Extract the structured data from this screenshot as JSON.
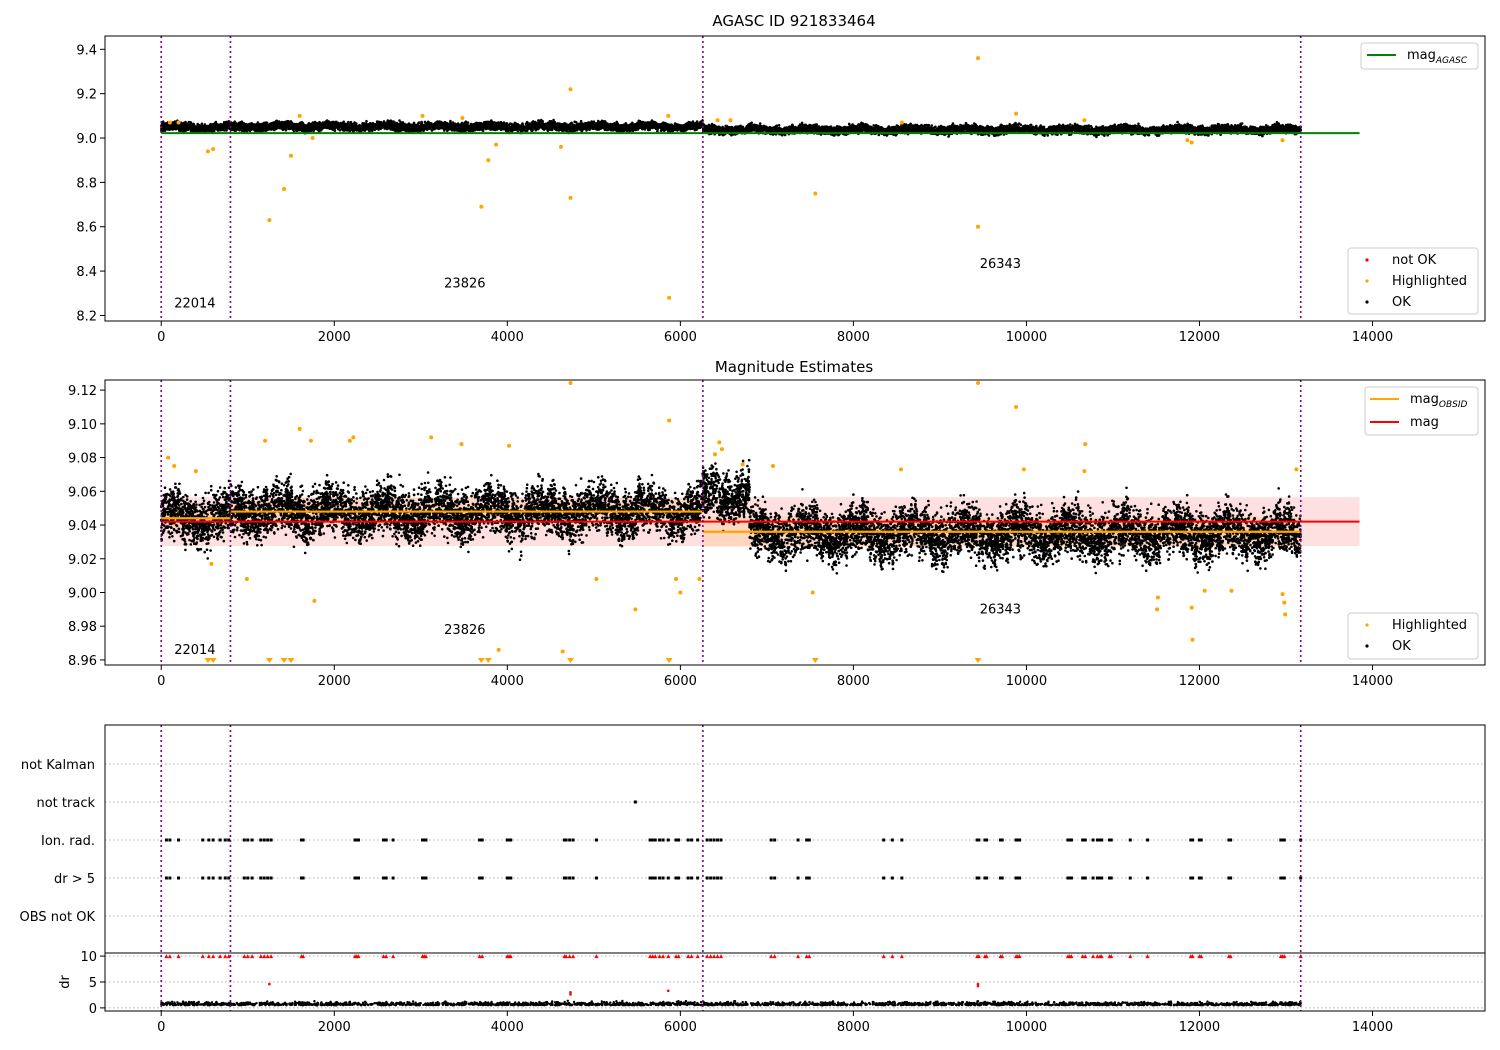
{
  "colors": {
    "ok": "#000000",
    "highlighted": "#ffa500",
    "not_ok": "#ff0000",
    "mag_agasc": "#008000",
    "mag_obsid": "#ffa500",
    "mag": "#ff0000",
    "obsid_boundary": "#800080"
  },
  "chart_data": [
    {
      "type": "scatter",
      "title": "AGASC ID 921833464",
      "xlim": [
        -650,
        15300
      ],
      "ylim": [
        8.175,
        9.46
      ],
      "xticks": [
        0,
        2000,
        4000,
        6000,
        8000,
        10000,
        12000,
        14000
      ],
      "yticks": [
        8.2,
        8.4,
        8.6,
        8.8,
        9.0,
        9.2,
        9.4
      ],
      "x_tick_labels": [
        "0",
        "2000",
        "4000",
        "6000",
        "8000",
        "10000",
        "12000",
        "14000"
      ],
      "y_tick_labels": [
        "8.2",
        "8.4",
        "8.6",
        "8.8",
        "9.0",
        "9.2",
        "9.4"
      ],
      "obsid_boundaries": [
        0,
        800,
        6260,
        13170
      ],
      "obsid_labels": [
        {
          "text": "22014",
          "x": 150,
          "y": 8.235
        },
        {
          "text": "23826",
          "x": 3270,
          "y": 8.325
        },
        {
          "text": "26343",
          "x": 9460,
          "y": 8.415
        }
      ],
      "reference_line": {
        "name": "mag_AGASC",
        "y": 9.022,
        "x_range": [
          0,
          13850
        ]
      },
      "ok_band": {
        "segments": [
          [
            0,
            800,
            9.048
          ],
          [
            800,
            6260,
            9.052
          ],
          [
            6260,
            13170,
            9.038
          ]
        ],
        "spread": 0.016
      },
      "highlighted_points": [
        [
          540,
          8.94
        ],
        [
          600,
          8.95
        ],
        [
          1250,
          8.63
        ],
        [
          1420,
          8.77
        ],
        [
          1500,
          8.92
        ],
        [
          3700,
          8.69
        ],
        [
          3780,
          8.9
        ],
        [
          3870,
          8.97
        ],
        [
          4620,
          8.96
        ],
        [
          4730,
          8.73
        ],
        [
          4730,
          9.22
        ],
        [
          5860,
          9.1
        ],
        [
          5870,
          8.28
        ],
        [
          7560,
          8.75
        ],
        [
          9440,
          9.36
        ],
        [
          9440,
          8.6
        ],
        [
          9880,
          9.11
        ],
        [
          11910,
          8.98
        ],
        [
          11860,
          8.99
        ],
        [
          12960,
          8.99
        ],
        [
          100,
          9.07
        ],
        [
          200,
          9.07
        ],
        [
          1600,
          9.1
        ],
        [
          1750,
          9.0
        ],
        [
          3020,
          9.1
        ],
        [
          3480,
          9.09
        ],
        [
          6430,
          9.08
        ],
        [
          6580,
          9.08
        ],
        [
          8560,
          9.07
        ],
        [
          10670,
          9.08
        ]
      ],
      "legend": [
        "mag_AGASC"
      ],
      "legend2": [
        "not OK",
        "Highlighted",
        "OK"
      ]
    },
    {
      "type": "scatter",
      "title": "Magnitude Estimates",
      "xlim": [
        -650,
        15300
      ],
      "ylim": [
        8.957,
        9.126
      ],
      "xticks": [
        0,
        2000,
        4000,
        6000,
        8000,
        10000,
        12000,
        14000
      ],
      "yticks": [
        8.96,
        8.98,
        9.0,
        9.02,
        9.04,
        9.06,
        9.08,
        9.1,
        9.12
      ],
      "x_tick_labels": [
        "0",
        "2000",
        "4000",
        "6000",
        "8000",
        "10000",
        "12000",
        "14000"
      ],
      "y_tick_labels": [
        "8.96",
        "8.98",
        "9.00",
        "9.02",
        "9.04",
        "9.06",
        "9.08",
        "9.10",
        "9.12"
      ],
      "obsid_boundaries": [
        0,
        800,
        6260,
        13170
      ],
      "obsid_labels": [
        {
          "text": "22014",
          "x": 150,
          "y": 8.9635
        },
        {
          "text": "23826",
          "x": 3270,
          "y": 8.9755
        },
        {
          "text": "26343",
          "x": 9460,
          "y": 8.9875
        }
      ],
      "mag": {
        "y": 9.042,
        "band": [
          9.0275,
          9.0565
        ],
        "x_range": [
          0,
          13850
        ]
      },
      "mag_obsid": [
        {
          "x_range": [
            0,
            800
          ],
          "y": 9.044,
          "band": [
            9.038,
            9.05
          ]
        },
        {
          "x_range": [
            800,
            6260
          ],
          "y": 9.048,
          "band": [
            9.04,
            9.056
          ]
        },
        {
          "x_range": [
            6260,
            13170
          ],
          "y": 9.036,
          "band": [
            9.027,
            9.045
          ]
        }
      ],
      "ok_cloud": {
        "segments": [
          [
            0,
            800,
            9.044
          ],
          [
            800,
            6260,
            9.048
          ],
          [
            6260,
            6800,
            9.058
          ],
          [
            6800,
            13170,
            9.035
          ]
        ],
        "spread": 0.013
      },
      "highlighted_points": [
        [
          80,
          9.08
        ],
        [
          150,
          9.075
        ],
        [
          400,
          9.072
        ],
        [
          580,
          9.017
        ],
        [
          990,
          9.008
        ],
        [
          1200,
          9.09
        ],
        [
          1600,
          9.097
        ],
        [
          1730,
          9.09
        ],
        [
          1770,
          8.995
        ],
        [
          2180,
          9.09
        ],
        [
          2220,
          9.092
        ],
        [
          3120,
          9.092
        ],
        [
          3470,
          9.088
        ],
        [
          3900,
          8.966
        ],
        [
          4020,
          9.087
        ],
        [
          4640,
          8.965
        ],
        [
          4730,
          9.125
        ],
        [
          5030,
          9.008
        ],
        [
          5480,
          8.99
        ],
        [
          5870,
          9.102
        ],
        [
          5950,
          9.008
        ],
        [
          6000,
          9.0
        ],
        [
          6220,
          9.008
        ],
        [
          6400,
          9.082
        ],
        [
          6450,
          9.089
        ],
        [
          6480,
          9.085
        ],
        [
          6720,
          9.076
        ],
        [
          7070,
          9.075
        ],
        [
          7530,
          9.0
        ],
        [
          8550,
          9.073
        ],
        [
          9440,
          9.125
        ],
        [
          9880,
          9.11
        ],
        [
          9970,
          9.073
        ],
        [
          10670,
          9.072
        ],
        [
          10680,
          9.088
        ],
        [
          11510,
          8.99
        ],
        [
          11520,
          8.997
        ],
        [
          11910,
          8.991
        ],
        [
          11920,
          8.972
        ],
        [
          12060,
          9.001
        ],
        [
          12370,
          9.001
        ],
        [
          12960,
          8.999
        ],
        [
          12980,
          8.994
        ],
        [
          12990,
          8.987
        ],
        [
          13120,
          9.073
        ]
      ],
      "below_range_markers": [
        540,
        600,
        1250,
        1420,
        1500,
        3700,
        3780,
        4730,
        5870,
        7560,
        9440
      ],
      "legend": [
        "mag_OBSID",
        "mag"
      ],
      "legend2": [
        "Highlighted",
        "OK"
      ]
    },
    {
      "type": "scatter",
      "title": "",
      "xlim": [
        -650,
        15300
      ],
      "flag_rows": [
        "not Kalman",
        "not track",
        "Ion. rad.",
        "dr > 5",
        "OBS not OK"
      ],
      "not_track_points": [
        5480
      ],
      "flag_event_times": [
        60,
        100,
        200,
        480,
        550,
        600,
        680,
        740,
        780,
        960,
        1000,
        1050,
        1150,
        1190,
        1230,
        1270,
        1620,
        1640,
        2240,
        2260,
        2280,
        2570,
        2600,
        2680,
        3020,
        3040,
        3060,
        3680,
        3710,
        4000,
        4020,
        4040,
        4660,
        4680,
        4720,
        4760,
        5030,
        5650,
        5680,
        5710,
        5760,
        5800,
        5860,
        5950,
        5980,
        6090,
        6130,
        6200,
        6310,
        6350,
        6390,
        6430,
        6470,
        7050,
        7090,
        7360,
        7460,
        7490,
        8350,
        8450,
        8560,
        9430,
        9450,
        9520,
        9540,
        9700,
        9720,
        9880,
        9900,
        9920,
        10480,
        10500,
        10520,
        10650,
        10680,
        10770,
        10820,
        10850,
        10870,
        10960,
        10980,
        11200,
        11400,
        11900,
        11920,
        12000,
        12020,
        12340,
        12360,
        12940,
        12960,
        12980,
        13170
      ],
      "dr": {
        "ylim": [
          -0.6,
          10.6
        ],
        "yticks": [
          0,
          5,
          10
        ],
        "y_tick_labels": [
          "0",
          "5",
          "10"
        ],
        "ylabel": "dr",
        "clip_value": 10,
        "baseline": 0.5,
        "not_ok_points": [
          [
            1250,
            4.6
          ],
          [
            4730,
            3.0
          ],
          [
            4730,
            2.6
          ],
          [
            5860,
            3.3
          ],
          [
            9440,
            4.6
          ],
          [
            9440,
            4.2
          ]
        ],
        "xticks": [
          0,
          2000,
          4000,
          6000,
          8000,
          10000,
          12000,
          14000
        ],
        "x_tick_labels": [
          "0",
          "2000",
          "4000",
          "6000",
          "8000",
          "10000",
          "12000",
          "14000"
        ]
      }
    }
  ],
  "legend_text": {
    "p1_line": "mag",
    "p1_line_sub": "AGASC",
    "p1_not_ok": "not OK",
    "p1_highlighted": "Highlighted",
    "p1_ok": "OK",
    "p2_line1": "mag",
    "p2_line1_sub": "OBSID",
    "p2_line2": "mag",
    "p2_highlighted": "Highlighted",
    "p2_ok": "OK"
  }
}
